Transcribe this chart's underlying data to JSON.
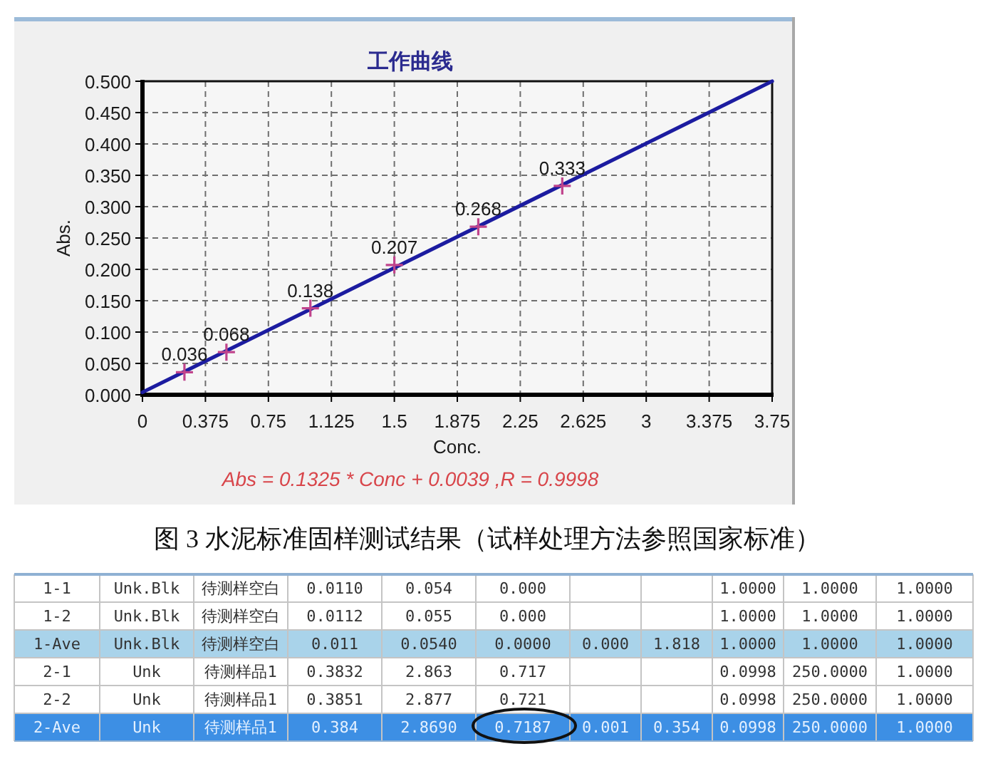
{
  "chart_data": [
    {
      "type": "line",
      "title": "工作曲线",
      "xlabel": "Conc.",
      "ylabel": "Abs.",
      "annotations": [
        "Abs = 0.1325 * Conc + 0.0039 ,R = 0.9998",
        "图 3 水泥标准固样测试结果（试样处理方法参照国家标准）"
      ],
      "series": [
        {
          "type": "line",
          "color": "#1c1ca0",
          "x": [
            0,
            3.75
          ],
          "values": [
            0.004,
            0.5
          ]
        },
        {
          "type": "scatter",
          "color": "#c0448c",
          "marker": "cross",
          "x": [
            0.25,
            0.5,
            1,
            1.5,
            2,
            2.5
          ],
          "values": [
            0.036,
            0.068,
            0.138,
            0.207,
            0.268,
            0.333
          ],
          "value_labels": [
            "0.036",
            "0.068",
            "0.138",
            "0.207",
            "0.268",
            "0.333"
          ]
        }
      ],
      "xlim": [
        0,
        3.75
      ],
      "xticks": [
        0,
        0.375,
        0.75,
        1.125,
        1.5,
        1.875,
        2.25,
        2.625,
        3,
        3.375,
        3.75
      ],
      "ylim": [
        0,
        0.5
      ],
      "yticks": [
        {
          "value": 0,
          "label": "0.000"
        },
        {
          "value": 0.05,
          "label": "0.050"
        },
        {
          "value": 0.1,
          "label": "0.100"
        },
        {
          "value": 0.15,
          "label": "0.150"
        },
        {
          "value": 0.2,
          "label": "0.200"
        },
        {
          "value": 0.25,
          "label": "0.250"
        },
        {
          "value": 0.3,
          "label": "0.300"
        },
        {
          "value": 0.35,
          "label": "0.350"
        },
        {
          "value": 0.4,
          "label": "0.400"
        },
        {
          "value": 0.45,
          "label": "0.450"
        },
        {
          "value": 0.5,
          "label": "0.500"
        }
      ],
      "grid": true
    },
    {
      "type": "other",
      "y_categories": [
        "1-1",
        "1-2",
        "1-Ave",
        "2-1",
        "2-2",
        "2-Ave"
      ],
      "categories": [
        null,
        null,
        null,
        null,
        null,
        null,
        null,
        null,
        null,
        null
      ],
      "colors": [
        "#ffffff",
        "#ffffff",
        "#a9d3ea",
        "#ffffff",
        "#ffffff",
        "#3d8fe4"
      ],
      "cell_labels": [
        [
          "Unk.Blk",
          "待测样空白",
          "0.0110",
          "0.054",
          "0.000",
          null,
          null,
          "1.0000",
          "1.0000",
          "1.0000"
        ],
        [
          "Unk.Blk",
          "待测样空白",
          "0.0112",
          "0.055",
          "0.000",
          null,
          null,
          "1.0000",
          "1.0000",
          "1.0000"
        ],
        [
          "Unk.Blk",
          "待测样空白",
          "0.011",
          "0.0540",
          "0.0000",
          "0.000",
          "1.818",
          "1.0000",
          "1.0000",
          "1.0000"
        ],
        [
          "Unk",
          "待测样品1",
          "0.3832",
          "2.863",
          "0.717",
          null,
          null,
          "0.0998",
          "250.0000",
          "1.0000"
        ],
        [
          "Unk",
          "待测样品1",
          "0.3851",
          "2.877",
          "0.721",
          null,
          null,
          "0.0998",
          "250.0000",
          "1.0000"
        ],
        [
          "Unk",
          "待测样品1",
          "0.384",
          "2.8690",
          "0.7187",
          "0.001",
          "0.354",
          "0.0998",
          "250.0000",
          "1.0000"
        ]
      ]
    }
  ]
}
